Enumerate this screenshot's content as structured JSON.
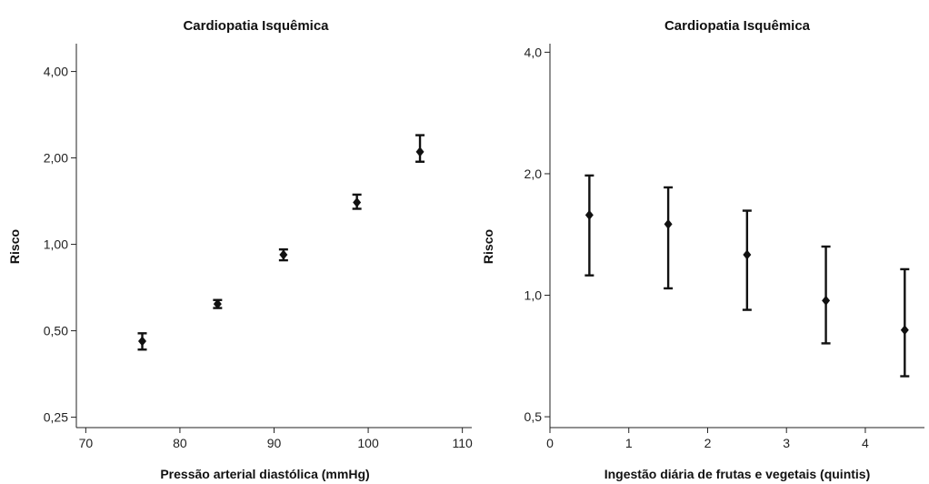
{
  "chart_data": [
    {
      "type": "scatter",
      "title": "Cardiopatia Isquêmica",
      "xlabel": "Pressão arterial diastólica (mmHg)",
      "ylabel": "Risco",
      "yscale": "log",
      "xlim": [
        69,
        111
      ],
      "ylim": [
        0.23,
        5.0
      ],
      "xticks": [
        70,
        80,
        90,
        100,
        110
      ],
      "xtick_labels": [
        "70",
        "80",
        "90",
        "100",
        "110"
      ],
      "yticks": [
        0.25,
        0.5,
        1.0,
        2.0,
        4.0
      ],
      "ytick_labels": [
        "0,25",
        "0,50",
        "1,00",
        "2,00",
        "4,00"
      ],
      "points": [
        {
          "x": 76,
          "y": 0.46,
          "lo": 0.43,
          "hi": 0.49
        },
        {
          "x": 84,
          "y": 0.62,
          "lo": 0.6,
          "hi": 0.64
        },
        {
          "x": 91,
          "y": 0.92,
          "lo": 0.88,
          "hi": 0.96
        },
        {
          "x": 98.8,
          "y": 1.4,
          "lo": 1.33,
          "hi": 1.49
        },
        {
          "x": 105.5,
          "y": 2.1,
          "lo": 1.94,
          "hi": 2.4
        }
      ],
      "grid": false
    },
    {
      "type": "scatter",
      "title": "Cardiopatia Isquêmica",
      "xlabel": "Ingestão diária de frutas e vegetais (quintis)",
      "ylabel": "Risco",
      "yscale": "log",
      "xlim": [
        0,
        4.75
      ],
      "ylim": [
        0.47,
        4.2
      ],
      "xticks": [
        0,
        1,
        2,
        3,
        4
      ],
      "xtick_labels": [
        "0",
        "1",
        "2",
        "3",
        "4"
      ],
      "yticks": [
        0.5,
        1.0,
        2.0,
        4.0
      ],
      "ytick_labels": [
        "0,5",
        "1,0",
        "2,0",
        "4,0"
      ],
      "points": [
        {
          "x": 0.5,
          "y": 1.58,
          "lo": 1.12,
          "hi": 1.98
        },
        {
          "x": 1.5,
          "y": 1.5,
          "lo": 1.04,
          "hi": 1.85
        },
        {
          "x": 2.5,
          "y": 1.26,
          "lo": 0.92,
          "hi": 1.62
        },
        {
          "x": 3.5,
          "y": 0.97,
          "lo": 0.76,
          "hi": 1.32
        },
        {
          "x": 4.5,
          "y": 0.82,
          "lo": 0.63,
          "hi": 1.16
        }
      ],
      "grid": false
    }
  ]
}
